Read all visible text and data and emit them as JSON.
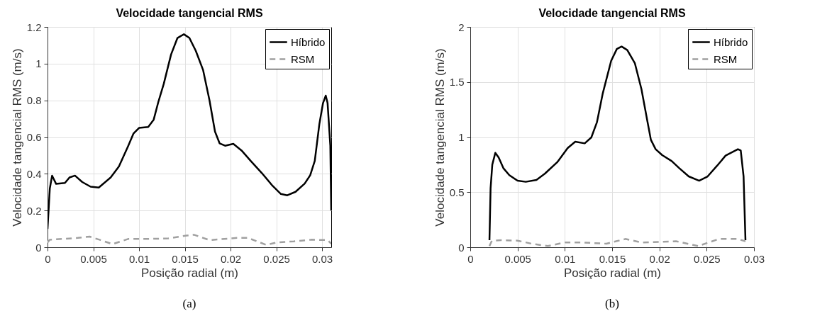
{
  "chart_data": [
    {
      "type": "line",
      "title": "Velocidade tangencial RMS",
      "xlabel": "Posição radial (m)",
      "ylabel": "Velocidade tangencial RMS (m/s)",
      "annotations": [
        "(a)"
      ],
      "xlim": [
        0,
        0.031
      ],
      "xticks": [
        0,
        0.005,
        0.01,
        0.015,
        0.02,
        0.025,
        0.03
      ],
      "ylim": [
        0,
        1.2
      ],
      "yticks": [
        0,
        0.2,
        0.4,
        0.6,
        0.8,
        1,
        1.2
      ],
      "grid": true,
      "legend": "top right",
      "series": [
        {
          "name": "Híbrido",
          "color": "#000000",
          "line_style": "solid",
          "x": [
            0,
            0.00025,
            0.0005,
            0.00094,
            0.0019,
            0.0024,
            0.003,
            0.0038,
            0.0047,
            0.0056,
            0.0069,
            0.0078,
            0.0088,
            0.0094,
            0.01,
            0.011,
            0.0116,
            0.0121,
            0.0127,
            0.0135,
            0.0142,
            0.0149,
            0.0155,
            0.0162,
            0.017,
            0.0177,
            0.0183,
            0.0188,
            0.0194,
            0.0203,
            0.0212,
            0.0222,
            0.0234,
            0.0246,
            0.0255,
            0.0262,
            0.0271,
            0.0281,
            0.0287,
            0.0292,
            0.0297,
            0.0301,
            0.0304,
            0.0306,
            0.0309,
            0.031
          ],
          "values": [
            0.1,
            0.32,
            0.39,
            0.345,
            0.35,
            0.38,
            0.39,
            0.355,
            0.33,
            0.325,
            0.38,
            0.44,
            0.55,
            0.62,
            0.65,
            0.655,
            0.695,
            0.79,
            0.89,
            1.05,
            1.14,
            1.16,
            1.14,
            1.07,
            0.965,
            0.8,
            0.63,
            0.566,
            0.553,
            0.563,
            0.527,
            0.47,
            0.405,
            0.334,
            0.29,
            0.283,
            0.302,
            0.347,
            0.392,
            0.47,
            0.67,
            0.785,
            0.826,
            0.785,
            0.553,
            0.2
          ]
        },
        {
          "name": "RSM",
          "color": "#a0a0a0",
          "line_style": "dashed",
          "x": [
            0,
            0.00025,
            0.0016,
            0.0033,
            0.0046,
            0.0058,
            0.0071,
            0.0088,
            0.0108,
            0.0132,
            0.0152,
            0.016,
            0.0177,
            0.0207,
            0.0219,
            0.0239,
            0.0251,
            0.0269,
            0.0288,
            0.0306,
            0.031
          ],
          "values": [
            0.026,
            0.041,
            0.045,
            0.051,
            0.058,
            0.039,
            0.017,
            0.045,
            0.045,
            0.048,
            0.064,
            0.068,
            0.039,
            0.051,
            0.051,
            0.013,
            0.026,
            0.032,
            0.041,
            0.039,
            0.019
          ]
        }
      ]
    },
    {
      "type": "line",
      "title": "Velocidade tangencial RMS",
      "xlabel": "Posição radial (m)",
      "ylabel": "Velocidade tangencial RMS (m/s)",
      "annotations": [
        "(b)"
      ],
      "xlim": [
        0,
        0.03
      ],
      "xticks": [
        0,
        0.005,
        0.01,
        0.015,
        0.02,
        0.025,
        0.03
      ],
      "ylim": [
        0,
        2
      ],
      "yticks": [
        0,
        0.5,
        1,
        1.5,
        2
      ],
      "grid": true,
      "legend": "top right",
      "series": [
        {
          "name": "Híbrido",
          "color": "#000000",
          "line_style": "solid",
          "x": [
            0.00203,
            0.00215,
            0.00233,
            0.00265,
            0.003,
            0.0035,
            0.00413,
            0.005,
            0.00587,
            0.007,
            0.0079,
            0.0092,
            0.0103,
            0.0111,
            0.0121,
            0.0128,
            0.0134,
            0.014,
            0.0149,
            0.0155,
            0.016,
            0.0166,
            0.0174,
            0.0181,
            0.0187,
            0.0191,
            0.0196,
            0.0203,
            0.0213,
            0.0221,
            0.0231,
            0.0242,
            0.0251,
            0.0261,
            0.027,
            0.0283,
            0.0286,
            0.0289,
            0.0291
          ],
          "values": [
            0.064,
            0.536,
            0.75,
            0.857,
            0.815,
            0.718,
            0.654,
            0.604,
            0.594,
            0.611,
            0.669,
            0.772,
            0.9,
            0.958,
            0.943,
            0.997,
            1.136,
            1.393,
            1.693,
            1.8,
            1.822,
            1.79,
            1.672,
            1.436,
            1.158,
            0.975,
            0.89,
            0.836,
            0.782,
            0.718,
            0.643,
            0.604,
            0.643,
            0.74,
            0.832,
            0.89,
            0.879,
            0.643,
            0.064
          ]
        },
        {
          "name": "RSM",
          "color": "#a0a0a0",
          "line_style": "dashed",
          "x": [
            0.00203,
            0.00228,
            0.00327,
            0.005,
            0.0065,
            0.0082,
            0.01,
            0.0119,
            0.0144,
            0.0164,
            0.0181,
            0.0218,
            0.0241,
            0.0263,
            0.0283,
            0.0291
          ],
          "values": [
            0.011,
            0.058,
            0.064,
            0.06,
            0.032,
            0.011,
            0.043,
            0.043,
            0.032,
            0.075,
            0.043,
            0.054,
            0.011,
            0.075,
            0.075,
            0.054
          ]
        }
      ]
    }
  ]
}
